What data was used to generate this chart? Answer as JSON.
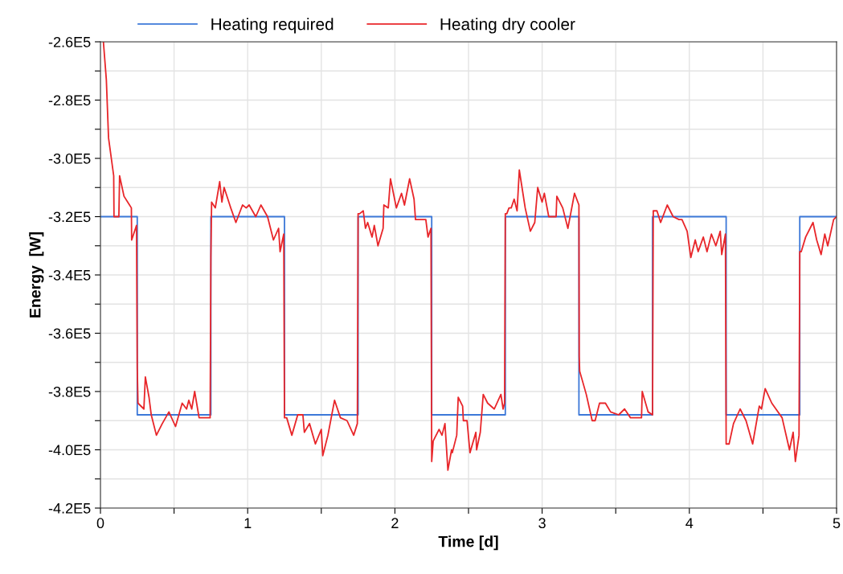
{
  "chart_data": {
    "type": "line",
    "xlabel": "Time [d]",
    "ylabel": "Energy  [W]",
    "xlim": [
      0,
      5
    ],
    "ylim": [
      -420000,
      -260000
    ],
    "xticks": [
      0,
      {
        "value": 0.5,
        "label": null
      },
      1,
      {
        "value": 1.5,
        "label": null
      },
      2,
      {
        "value": 2.5,
        "label": null
      },
      3,
      {
        "value": 3.5,
        "label": null
      },
      4,
      {
        "value": 4.5,
        "label": null
      },
      5
    ],
    "yticks": [
      {
        "value": -420000,
        "label": "-4.2E5"
      },
      {
        "value": -410000,
        "label": null
      },
      {
        "value": -400000,
        "label": "-4.0E5"
      },
      {
        "value": -390000,
        "label": null
      },
      {
        "value": -380000,
        "label": "-3.8E5"
      },
      {
        "value": -370000,
        "label": null
      },
      {
        "value": -360000,
        "label": "-3.6E5"
      },
      {
        "value": -350000,
        "label": null
      },
      {
        "value": -340000,
        "label": "-3.4E5"
      },
      {
        "value": -330000,
        "label": null
      },
      {
        "value": -320000,
        "label": "-3.2E5"
      },
      {
        "value": -310000,
        "label": null
      },
      {
        "value": -300000,
        "label": "-3.0E5"
      },
      {
        "value": -290000,
        "label": null
      },
      {
        "value": -280000,
        "label": "-2.8E5"
      },
      {
        "value": -270000,
        "label": null
      },
      {
        "value": -260000,
        "label": "-2.6E5"
      }
    ],
    "grid": true,
    "legend": "top",
    "line_style": "solid",
    "marker": "none",
    "series": [
      {
        "name": "Heating required",
        "color": "#3c78d8",
        "type": "step",
        "x": [
          0,
          0.25,
          0.75,
          1.25,
          1.75,
          2.25,
          2.75,
          3.25,
          3.75,
          4.25,
          4.75,
          5
        ],
        "values": [
          -320000,
          -388000,
          -320000,
          -388000,
          -320000,
          -388000,
          -320000,
          -388000,
          -320000,
          -388000,
          -320000,
          -320000
        ]
      },
      {
        "name": "Heating dry cooler",
        "color": "#e8262a",
        "x": [
          0.02,
          0.04,
          0.055,
          0.09,
          0.092,
          0.125,
          0.13,
          0.16,
          0.21,
          0.212,
          0.245,
          0.25,
          0.255,
          0.295,
          0.305,
          0.33,
          0.345,
          0.38,
          0.42,
          0.465,
          0.51,
          0.555,
          0.585,
          0.6,
          0.62,
          0.64,
          0.67,
          0.745,
          0.75,
          0.755,
          0.78,
          0.81,
          0.825,
          0.84,
          0.885,
          0.92,
          0.965,
          0.99,
          1.01,
          1.055,
          1.09,
          1.135,
          1.175,
          1.21,
          1.22,
          1.245,
          1.25,
          1.265,
          1.3,
          1.34,
          1.375,
          1.385,
          1.42,
          1.46,
          1.5,
          1.51,
          1.545,
          1.59,
          1.63,
          1.675,
          1.72,
          1.745,
          1.75,
          1.76,
          1.785,
          1.8,
          1.815,
          1.845,
          1.86,
          1.885,
          1.92,
          1.925,
          1.955,
          1.97,
          2.01,
          2.045,
          2.065,
          2.1,
          2.13,
          2.14,
          2.21,
          2.225,
          2.245,
          2.25,
          2.26,
          2.3,
          2.32,
          2.34,
          2.36,
          2.385,
          2.39,
          2.42,
          2.43,
          2.46,
          2.465,
          2.49,
          2.51,
          2.55,
          2.555,
          2.58,
          2.6,
          2.63,
          2.675,
          2.72,
          2.735,
          2.745,
          2.75,
          2.76,
          2.775,
          2.79,
          2.81,
          2.83,
          2.845,
          2.885,
          2.92,
          2.95,
          2.97,
          3.0,
          3.015,
          3.045,
          3.095,
          3.1,
          3.14,
          3.175,
          3.22,
          3.25,
          3.252,
          3.255,
          3.3,
          3.34,
          3.36,
          3.39,
          3.43,
          3.465,
          3.52,
          3.56,
          3.6,
          3.675,
          3.68,
          3.72,
          3.75,
          3.755,
          3.78,
          3.805,
          3.85,
          3.89,
          3.93,
          3.95,
          3.985,
          4.01,
          4.04,
          4.06,
          4.095,
          4.12,
          4.15,
          4.18,
          4.21,
          4.22,
          4.245,
          4.25,
          4.27,
          4.3,
          4.345,
          4.385,
          4.43,
          4.475,
          4.49,
          4.515,
          4.56,
          4.63,
          4.68,
          4.705,
          4.72,
          4.745,
          4.75,
          4.76,
          4.79,
          4.84,
          4.865,
          4.895,
          4.92,
          4.94,
          4.98,
          5.0
        ],
        "values": [
          -260000,
          -273000,
          -293000,
          -306000,
          -320000,
          -320000,
          -306000,
          -313000,
          -317000,
          -328000,
          -323000,
          -372000,
          -384000,
          -386000,
          -375000,
          -382000,
          -388000,
          -395000,
          -391000,
          -387000,
          -392000,
          -384000,
          -386000,
          -383000,
          -386000,
          -380000,
          -389000,
          -389000,
          -334000,
          -315000,
          -317000,
          -308000,
          -315000,
          -310000,
          -317000,
          -322000,
          -316000,
          -317000,
          -316000,
          -320000,
          -316000,
          -320000,
          -328000,
          -324000,
          -332000,
          -326000,
          -389000,
          -389000,
          -395000,
          -388000,
          -388000,
          -394000,
          -391000,
          -398000,
          -393000,
          -402000,
          -395000,
          -383000,
          -389000,
          -390000,
          -395000,
          -391000,
          -319000,
          -319000,
          -318000,
          -324000,
          -322000,
          -327000,
          -323000,
          -330000,
          -324000,
          -316000,
          -317000,
          -307000,
          -317000,
          -312000,
          -316000,
          -307000,
          -314000,
          -321000,
          -321000,
          -327000,
          -324000,
          -404000,
          -397000,
          -393000,
          -395000,
          -391000,
          -407000,
          -400000,
          -401000,
          -395000,
          -382000,
          -385000,
          -390000,
          -390000,
          -401000,
          -394000,
          -400000,
          -394000,
          -381000,
          -384000,
          -386000,
          -381000,
          -386000,
          -384000,
          -319000,
          -319000,
          -317000,
          -317000,
          -314000,
          -318000,
          -304000,
          -317000,
          -325000,
          -322000,
          -310000,
          -315000,
          -312000,
          -320000,
          -320000,
          -313000,
          -317000,
          -324000,
          -312000,
          -316000,
          -368000,
          -373000,
          -381000,
          -390000,
          -390000,
          -384000,
          -384000,
          -387000,
          -388000,
          -386000,
          -389000,
          -389000,
          -380000,
          -387000,
          -388000,
          -318000,
          -318000,
          -322000,
          -316000,
          -320000,
          -321000,
          -321000,
          -325000,
          -334000,
          -328000,
          -332000,
          -327000,
          -332000,
          -326000,
          -330000,
          -325000,
          -333000,
          -326000,
          -398000,
          -398000,
          -391000,
          -386000,
          -390000,
          -398000,
          -385000,
          -386000,
          -379000,
          -384000,
          -389000,
          -400000,
          -394000,
          -404000,
          -395000,
          -332000,
          -332000,
          -327000,
          -322000,
          -328000,
          -333000,
          -326000,
          -330000,
          -321000,
          -320000
        ]
      }
    ]
  }
}
